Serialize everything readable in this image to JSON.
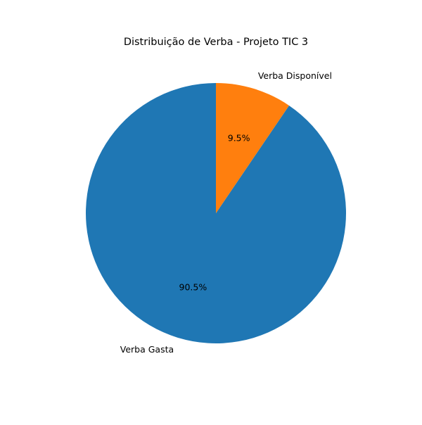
{
  "chart_data": {
    "type": "pie",
    "title": "Distribuição de Verba - Projeto TIC 3",
    "slices": [
      {
        "label": "Verba Gasta",
        "value": 90.5,
        "pct_label": "90.5%",
        "color": "#1f77b4"
      },
      {
        "label": "Verba Disponível",
        "value": 9.5,
        "pct_label": "9.5%",
        "color": "#ff7f0e"
      }
    ],
    "start_angle": "top (12 o'clock)",
    "direction": "counterclockwise",
    "legend": "none"
  }
}
